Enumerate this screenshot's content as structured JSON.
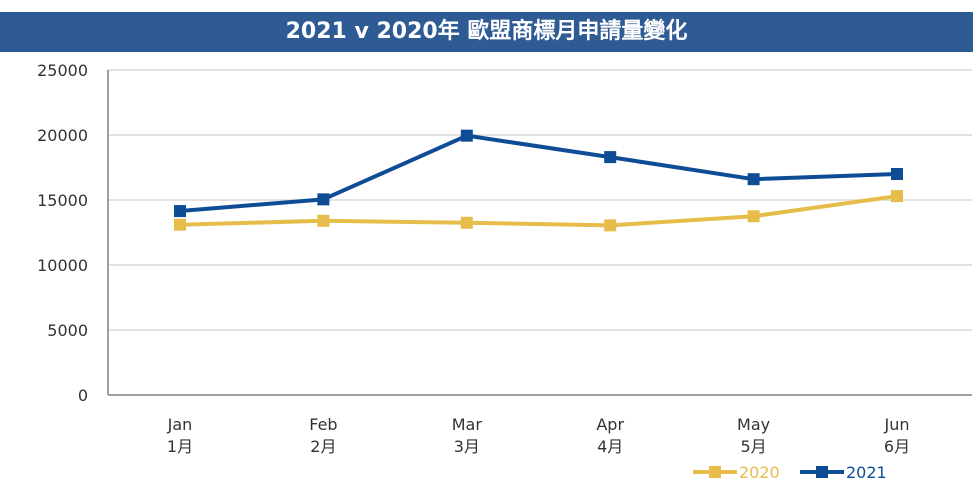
{
  "header": {
    "title": "2021 v 2020年 歐盟商標月申請量變化"
  },
  "colors": {
    "title_bg": "#2e5b94",
    "series_2020": "#e6bd4a",
    "series_2021": "#0e4d96",
    "grid": "#d9d9d9",
    "axis": "#808080"
  },
  "chart_data": {
    "type": "line",
    "title": "2021 v 2020年 歐盟商標月申請量變化",
    "categories": [
      {
        "en": "Jan",
        "zh": "1月"
      },
      {
        "en": "Feb",
        "zh": "2月"
      },
      {
        "en": "Mar",
        "zh": "3月"
      },
      {
        "en": "Apr",
        "zh": "4月"
      },
      {
        "en": "May",
        "zh": "5月"
      },
      {
        "en": "Jun",
        "zh": "6月"
      }
    ],
    "series": [
      {
        "name": "2020",
        "color": "#e6bd4a",
        "values": [
          13100,
          13400,
          13250,
          13050,
          13750,
          15300
        ]
      },
      {
        "name": "2021",
        "color": "#0e4d96",
        "values": [
          14150,
          15050,
          19950,
          18300,
          16600,
          17000
        ]
      }
    ],
    "ylim": [
      0,
      25000
    ],
    "yticks": [
      0,
      5000,
      10000,
      15000,
      20000,
      25000
    ],
    "grid": true,
    "legend": "bottom-right",
    "xlabel": "",
    "ylabel": ""
  }
}
